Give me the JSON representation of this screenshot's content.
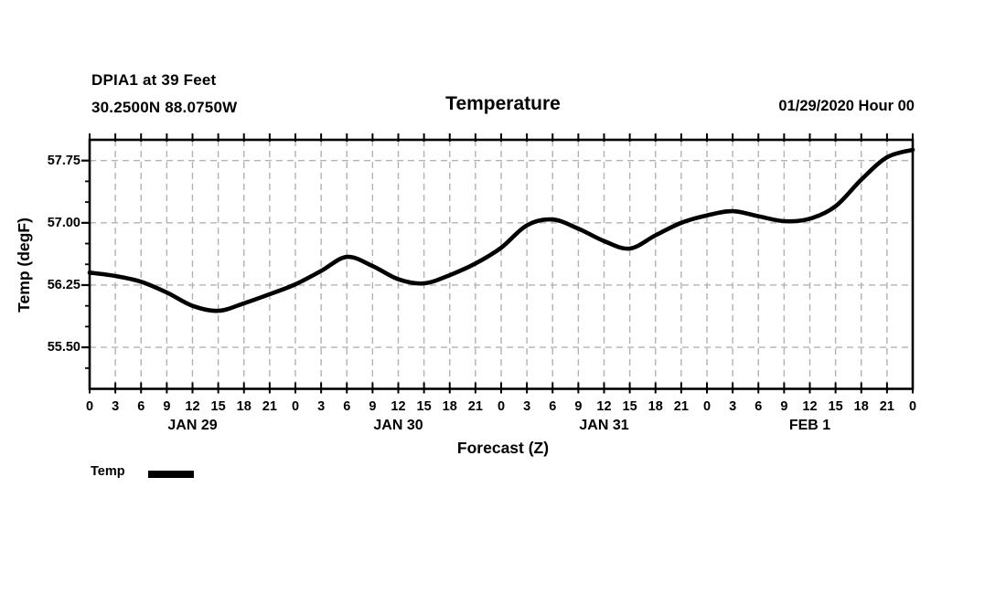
{
  "header": {
    "station_line": "DPIA1 at 39 Feet",
    "coords_line": "30.2500N 88.0750W",
    "title": "Temperature",
    "datetime": "01/29/2020 Hour 00"
  },
  "legend": {
    "label": "Temp"
  },
  "colors": {
    "line": "#000000",
    "grid": "#b2b2b2",
    "axis": "#000000",
    "background": "#ffffff"
  },
  "chart_data": {
    "type": "line",
    "title": "Temperature",
    "xlabel": "Forecast (Z)",
    "ylabel": "Temp (degF)",
    "ylim": [
      55.0,
      58.0
    ],
    "xlim_hours": [
      0,
      96
    ],
    "grid": "dashed",
    "legend_position": "bottom-left",
    "y_major_ticks": [
      55.5,
      56.25,
      57.0,
      57.75
    ],
    "y_tick_labels": [
      "55.50",
      "56.25",
      "57.00",
      "57.75"
    ],
    "y_minor_step": 0.25,
    "x_tick_step_hours": 3,
    "x_hours": [
      0,
      3,
      6,
      9,
      12,
      15,
      18,
      21,
      24,
      27,
      30,
      33,
      36,
      39,
      42,
      45,
      48,
      51,
      54,
      57,
      60,
      63,
      66,
      69,
      72,
      75,
      78,
      81,
      84,
      87,
      90,
      93,
      96
    ],
    "x_tick_labels": [
      "0",
      "3",
      "6",
      "9",
      "12",
      "15",
      "18",
      "21",
      "0",
      "3",
      "6",
      "9",
      "12",
      "15",
      "18",
      "21",
      "0",
      "3",
      "6",
      "9",
      "12",
      "15",
      "18",
      "21",
      "0",
      "3",
      "6",
      "9",
      "12",
      "15",
      "18",
      "21",
      "0"
    ],
    "day_labels": [
      {
        "label": "JAN 29",
        "hour": 12
      },
      {
        "label": "JAN 30",
        "hour": 36
      },
      {
        "label": "JAN 31",
        "hour": 60
      },
      {
        "label": "FEB 1",
        "hour": 84
      }
    ],
    "series": [
      {
        "name": "Temp",
        "values": [
          56.4,
          56.36,
          56.29,
          56.16,
          56.0,
          55.94,
          56.03,
          56.14,
          56.26,
          56.42,
          56.59,
          56.48,
          56.32,
          56.27,
          56.37,
          56.51,
          56.7,
          56.97,
          57.04,
          56.93,
          56.78,
          56.69,
          56.85,
          57.0,
          57.09,
          57.14,
          57.08,
          57.02,
          57.05,
          57.2,
          57.52,
          57.79,
          57.88
        ]
      }
    ]
  }
}
